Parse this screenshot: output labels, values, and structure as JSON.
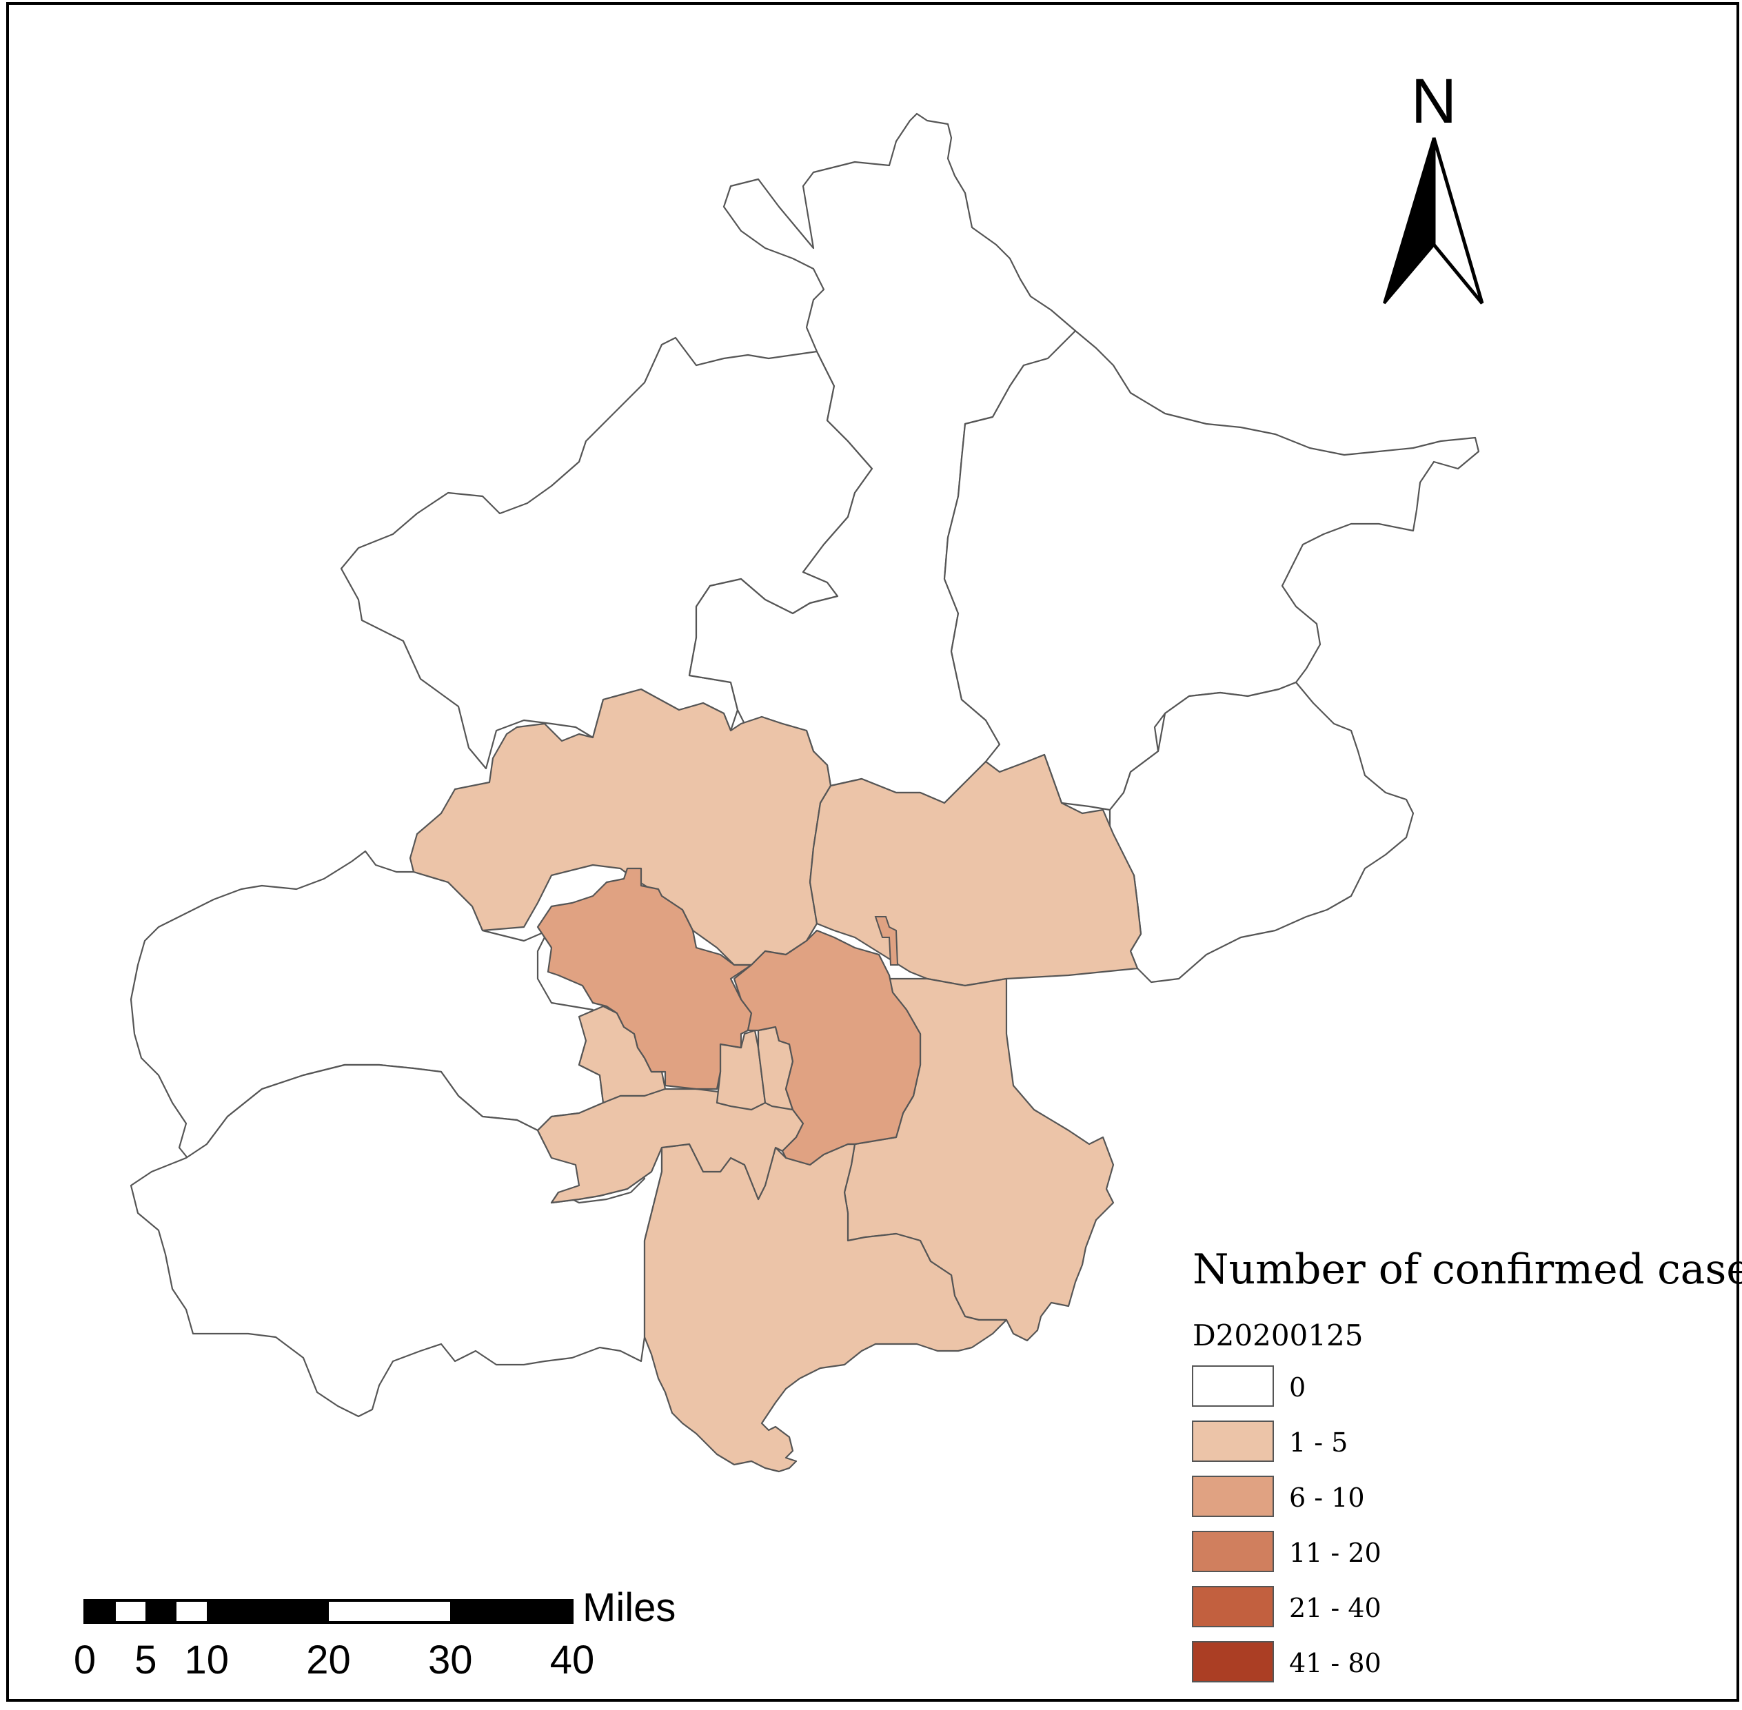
{
  "legend": {
    "title": "Number of confirmed cases",
    "field": "D20200125",
    "classes": [
      {
        "label": "0",
        "color": "#ffffff"
      },
      {
        "label": "1 - 5",
        "color": "#ecc4a8"
      },
      {
        "label": "6 - 10",
        "color": "#e0a282"
      },
      {
        "label": "11 - 20",
        "color": "#d07f5e"
      },
      {
        "label": "21 - 40",
        "color": "#c2603f"
      },
      {
        "label": "41 - 80",
        "color": "#ab3e24"
      }
    ]
  },
  "north_arrow": {
    "label": "N"
  },
  "scale_bar": {
    "unit": "Miles",
    "ticks": [
      "0",
      "5",
      "10",
      "20",
      "30",
      "40"
    ]
  },
  "colors": {
    "boundary": "#555555",
    "frame": "#000000"
  }
}
